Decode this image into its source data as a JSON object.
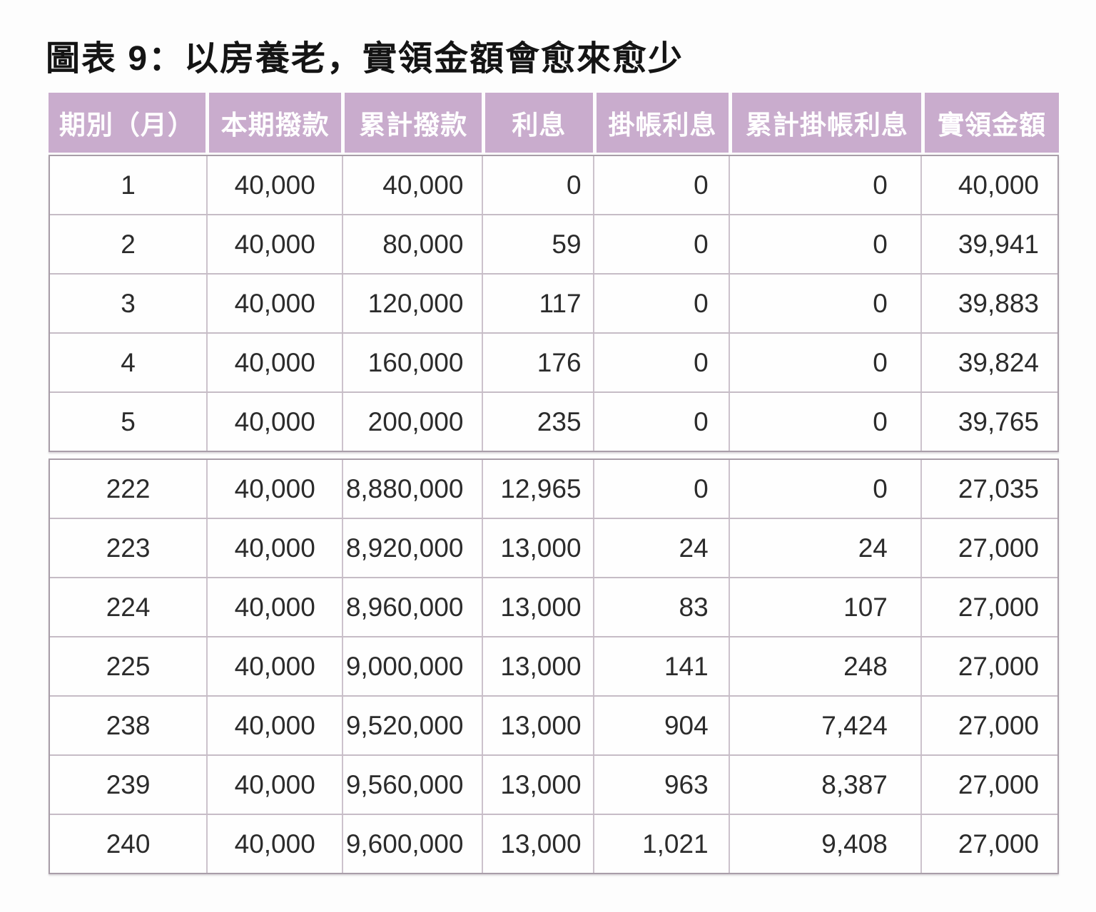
{
  "title": "圖表 9：以房養老，實領金額會愈來愈少",
  "colors": {
    "header_bg": "#c9accd",
    "header_text": "#ffffff",
    "cell_border": "#ccc2cc",
    "outer_border": "#a99ea9",
    "body_text": "#2b2b2b",
    "background": "#fdfdfd"
  },
  "table": {
    "columns": [
      "期別（月）",
      "本期撥款",
      "累計撥款",
      "利息",
      "掛帳利息",
      "累計掛帳利息",
      "實領金額"
    ],
    "sections": [
      {
        "rows": [
          [
            "1",
            "40,000",
            "40,000",
            "0",
            "0",
            "0",
            "40,000"
          ],
          [
            "2",
            "40,000",
            "80,000",
            "59",
            "0",
            "0",
            "39,941"
          ],
          [
            "3",
            "40,000",
            "120,000",
            "117",
            "0",
            "0",
            "39,883"
          ],
          [
            "4",
            "40,000",
            "160,000",
            "176",
            "0",
            "0",
            "39,824"
          ],
          [
            "5",
            "40,000",
            "200,000",
            "235",
            "0",
            "0",
            "39,765"
          ]
        ]
      },
      {
        "rows": [
          [
            "222",
            "40,000",
            "8,880,000",
            "12,965",
            "0",
            "0",
            "27,035"
          ],
          [
            "223",
            "40,000",
            "8,920,000",
            "13,000",
            "24",
            "24",
            "27,000"
          ],
          [
            "224",
            "40,000",
            "8,960,000",
            "13,000",
            "83",
            "107",
            "27,000"
          ],
          [
            "225",
            "40,000",
            "9,000,000",
            "13,000",
            "141",
            "248",
            "27,000"
          ],
          [
            "238",
            "40,000",
            "9,520,000",
            "13,000",
            "904",
            "7,424",
            "27,000"
          ],
          [
            "239",
            "40,000",
            "9,560,000",
            "13,000",
            "963",
            "8,387",
            "27,000"
          ],
          [
            "240",
            "40,000",
            "9,600,000",
            "13,000",
            "1,021",
            "9,408",
            "27,000"
          ]
        ]
      }
    ]
  },
  "chart_data": {
    "type": "table",
    "title": "圖表 9：以房養老，實領金額會愈來愈少",
    "columns": [
      "期別（月）",
      "本期撥款",
      "累計撥款",
      "利息",
      "掛帳利息",
      "累計掛帳利息",
      "實領金額"
    ],
    "rows": [
      [
        1,
        40000,
        40000,
        0,
        0,
        0,
        40000
      ],
      [
        2,
        40000,
        80000,
        59,
        0,
        0,
        39941
      ],
      [
        3,
        40000,
        120000,
        117,
        0,
        0,
        39883
      ],
      [
        4,
        40000,
        160000,
        176,
        0,
        0,
        39824
      ],
      [
        5,
        40000,
        200000,
        235,
        0,
        0,
        39765
      ],
      [
        222,
        40000,
        8880000,
        12965,
        0,
        0,
        27035
      ],
      [
        223,
        40000,
        8920000,
        13000,
        24,
        24,
        27000
      ],
      [
        224,
        40000,
        8960000,
        13000,
        83,
        107,
        27000
      ],
      [
        225,
        40000,
        9000000,
        13000,
        141,
        248,
        27000
      ],
      [
        238,
        40000,
        9520000,
        13000,
        904,
        7424,
        27000
      ],
      [
        239,
        40000,
        9560000,
        13000,
        963,
        8387,
        27000
      ],
      [
        240,
        40000,
        9600000,
        13000,
        1021,
        9408,
        27000
      ]
    ],
    "layout": {
      "section_break_after_row_index": 4,
      "header_fill": "#c9accd"
    }
  }
}
